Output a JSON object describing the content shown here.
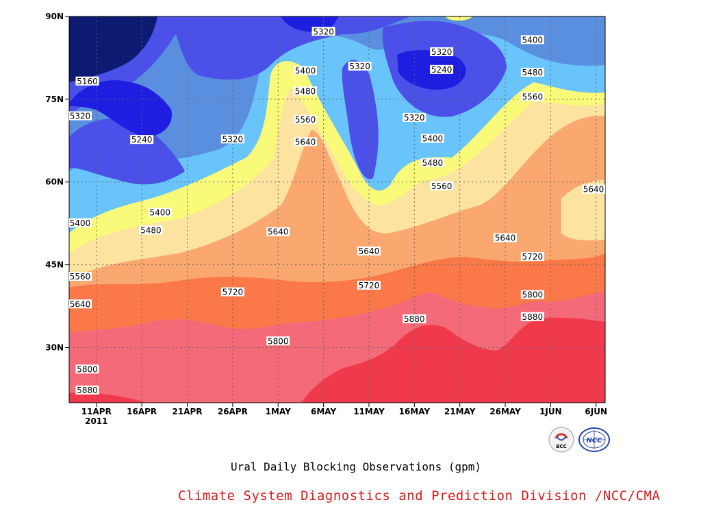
{
  "chart_data": {
    "type": "heatmap",
    "title": "Ural Daily Blocking Observations (gpm)",
    "credit": "Climate System Diagnostics and Prediction Division /NCC/CMA",
    "x_ticks": [
      "11APR",
      "16APR",
      "21APR",
      "26APR",
      "1MAY",
      "6MAY",
      "11MAY",
      "16MAY",
      "21MAY",
      "26MAY",
      "1JUN",
      "6JUN"
    ],
    "x_year_label": "2011",
    "x_range": [
      "2011-04-08",
      "2011-06-06"
    ],
    "y_ticks": [
      "30N",
      "45N",
      "60N",
      "75N",
      "90N"
    ],
    "y_tick_values": [
      30,
      45,
      60,
      75,
      90
    ],
    "y_range": [
      20,
      90
    ],
    "contour_levels": [
      5160,
      5240,
      5320,
      5400,
      5480,
      5560,
      5640,
      5720,
      5800,
      5880
    ],
    "contour_labels": [
      {
        "text": "5160",
        "date": "2011-04-10",
        "lat": 78.3
      },
      {
        "text": "5320",
        "date": "2011-04-09",
        "lat": 72.0
      },
      {
        "text": "5240",
        "date": "2011-04-16",
        "lat": 67.7
      },
      {
        "text": "5320",
        "date": "2011-04-26",
        "lat": 67.8
      },
      {
        "text": "5400",
        "date": "2011-04-08",
        "lat": 52.6
      },
      {
        "text": "5400",
        "date": "2011-04-18",
        "lat": 54.5
      },
      {
        "text": "5480",
        "date": "2011-04-17",
        "lat": 51.3
      },
      {
        "text": "5560",
        "date": "2011-04-08",
        "lat": 42.9
      },
      {
        "text": "5640",
        "date": "2011-04-08",
        "lat": 37.9
      },
      {
        "text": "5800",
        "date": "2011-04-10",
        "lat": 26.1
      },
      {
        "text": "5880",
        "date": "2011-04-10",
        "lat": 22.3
      },
      {
        "text": "5720",
        "date": "2011-04-26",
        "lat": 40.1
      },
      {
        "text": "5640",
        "date": "2011-05-01",
        "lat": 51.0
      },
      {
        "text": "5800",
        "date": "2011-05-01",
        "lat": 31.2
      },
      {
        "text": "5320",
        "date": "2011-05-06",
        "lat": 87.3
      },
      {
        "text": "5400",
        "date": "2011-05-04",
        "lat": 80.2
      },
      {
        "text": "5480",
        "date": "2011-05-04",
        "lat": 76.5
      },
      {
        "text": "5560",
        "date": "2011-05-04",
        "lat": 71.3
      },
      {
        "text": "5640",
        "date": "2011-05-04",
        "lat": 67.3
      },
      {
        "text": "5320",
        "date": "2011-05-10",
        "lat": 81.0
      },
      {
        "text": "5640",
        "date": "2011-05-11",
        "lat": 47.5
      },
      {
        "text": "5720",
        "date": "2011-05-11",
        "lat": 41.3
      },
      {
        "text": "5880",
        "date": "2011-05-16",
        "lat": 35.2
      },
      {
        "text": "5320",
        "date": "2011-05-16",
        "lat": 71.7
      },
      {
        "text": "5400",
        "date": "2011-05-18",
        "lat": 67.9
      },
      {
        "text": "5480",
        "date": "2011-05-18",
        "lat": 63.5
      },
      {
        "text": "5560",
        "date": "2011-05-19",
        "lat": 59.3
      },
      {
        "text": "5320",
        "date": "2011-05-19",
        "lat": 83.6
      },
      {
        "text": "5240",
        "date": "2011-05-19",
        "lat": 80.4
      },
      {
        "text": "5640",
        "date": "2011-05-26",
        "lat": 49.9
      },
      {
        "text": "5400",
        "date": "2011-05-29",
        "lat": 85.8
      },
      {
        "text": "5480",
        "date": "2011-05-29",
        "lat": 79.9
      },
      {
        "text": "5560",
        "date": "2011-05-29",
        "lat": 75.5
      },
      {
        "text": "5720",
        "date": "2011-05-29",
        "lat": 46.5
      },
      {
        "text": "5800",
        "date": "2011-05-29",
        "lat": 39.6
      },
      {
        "text": "5880",
        "date": "2011-05-29",
        "lat": 35.6
      },
      {
        "text": "5640",
        "date": "2011-06-05",
        "lat": 58.7
      }
    ],
    "fill_colors": {
      "<5160": "#0d1a72",
      "5160-5240": "#1d1ee0",
      "5240-5320": "#4a50e8",
      "5320-5400": "#5a8fe0",
      "5400-5480": "#68c4fa",
      "5480-5560": "#fafa7a",
      "5560-5640": "#fde3a0",
      "5640-5720": "#fba870",
      "5720-5800": "#fb7848",
      "5800-5880": "#f56a78",
      ">5880": "#f03a4c"
    },
    "grid": true
  },
  "logos": {
    "left": {
      "name": "BCC",
      "text": "BCC"
    },
    "right": {
      "name": "NCC",
      "text": "NCC"
    }
  }
}
